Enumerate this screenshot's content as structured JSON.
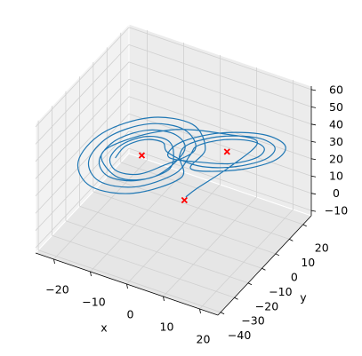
{
  "chart_data": {
    "type": "line3d",
    "xlabel": "x",
    "ylabel": "y",
    "xlim": [
      -25,
      25
    ],
    "ylim": [
      -42,
      26
    ],
    "zlim": [
      -13,
      62
    ],
    "xticks": [
      {
        "value": -20,
        "label": "−20"
      },
      {
        "value": -10,
        "label": "−10"
      },
      0,
      10,
      20
    ],
    "yticks": [
      {
        "value": -40,
        "label": "−40"
      },
      {
        "value": -30,
        "label": "−30"
      },
      {
        "value": -20,
        "label": "−20"
      },
      {
        "value": -10,
        "label": "−10"
      },
      0,
      10,
      20
    ],
    "zticks": [
      {
        "value": -10,
        "label": "−10"
      },
      0,
      10,
      20,
      30,
      40,
      50,
      60
    ],
    "grid": true,
    "series": [
      {
        "type": "line",
        "color": "#1f77b4",
        "x": [
          0,
          2,
          8,
          14,
          10,
          0,
          -10,
          -16,
          -12,
          -5,
          -0.5,
          -2.8,
          -8.5,
          -14.2,
          -16.5,
          -14.2,
          -8.5,
          -2.8,
          -2.5,
          -4.3,
          -8.5,
          -12.7,
          -14.5,
          -12.7,
          -8.5,
          -4.3,
          1.5,
          -1.4,
          -8.5,
          -15.6,
          -18.5,
          -15.6,
          -8.5,
          -1.4,
          1.5,
          3.5,
          8.5,
          13.5,
          15.5,
          13.5,
          8.5,
          3.5,
          -2.5,
          0.7,
          8.5,
          16.3,
          19.5,
          16.3,
          8.5,
          0.7,
          3.5,
          0,
          -8.5,
          -17,
          -20.5,
          -17,
          -8.5,
          0,
          -0.5,
          2.1,
          8.5,
          14.9,
          17.5,
          14.9,
          8.5,
          2.1,
          -3.5,
          -5,
          -8.5,
          -12,
          -13.5
        ],
        "y": [
          1,
          4,
          12,
          16,
          4,
          -6,
          -14,
          -18,
          -16,
          -8,
          1.1,
          1.1,
          -4.5,
          -12.5,
          -18.1,
          -18.1,
          -12.5,
          -4.5,
          -1.3,
          -1.3,
          -5.5,
          -11.5,
          -15.7,
          -15.7,
          -11.5,
          -5.5,
          3.5,
          3.5,
          -3.5,
          -13.5,
          -20.5,
          -20.5,
          -13.5,
          -3.5,
          0.1,
          0.1,
          5,
          12,
          16.9,
          16.9,
          12,
          5,
          -4.7,
          -4.7,
          3,
          14,
          21.7,
          21.7,
          14,
          3,
          5.9,
          5.9,
          -2.5,
          -14.5,
          -22.9,
          -22.9,
          -14.5,
          -2.5,
          -2.3,
          -2.3,
          4,
          13,
          19.3,
          19.3,
          13,
          4,
          -2.5,
          -2.5,
          -6,
          -11,
          -14.5
        ],
        "z": [
          1,
          5,
          15,
          30,
          42,
          46,
          40,
          30,
          18,
          17,
          27,
          34.9,
          38.2,
          34.9,
          27,
          19.1,
          15.8,
          19.1,
          27,
          32.9,
          35.4,
          32.9,
          27,
          21.1,
          18.6,
          21.1,
          27,
          36.9,
          41,
          36.9,
          27,
          17.1,
          13,
          17.1,
          27,
          33.9,
          36.8,
          33.9,
          27,
          20.1,
          17.2,
          20.1,
          27,
          37.9,
          42.4,
          37.9,
          27,
          16.1,
          11.6,
          16.1,
          27,
          38.9,
          43.8,
          38.9,
          27,
          15.1,
          10.2,
          15.1,
          27,
          35.9,
          39.6,
          35.9,
          27,
          18.1,
          14.4,
          18.1,
          27,
          32,
          34,
          32,
          27
        ]
      },
      {
        "type": "scatter",
        "marker": "x",
        "color": "#ff0000",
        "x": [
          0,
          8.49,
          -8.49
        ],
        "y": [
          0,
          8.49,
          -8.49
        ],
        "z": [
          0,
          27,
          27
        ]
      }
    ]
  }
}
